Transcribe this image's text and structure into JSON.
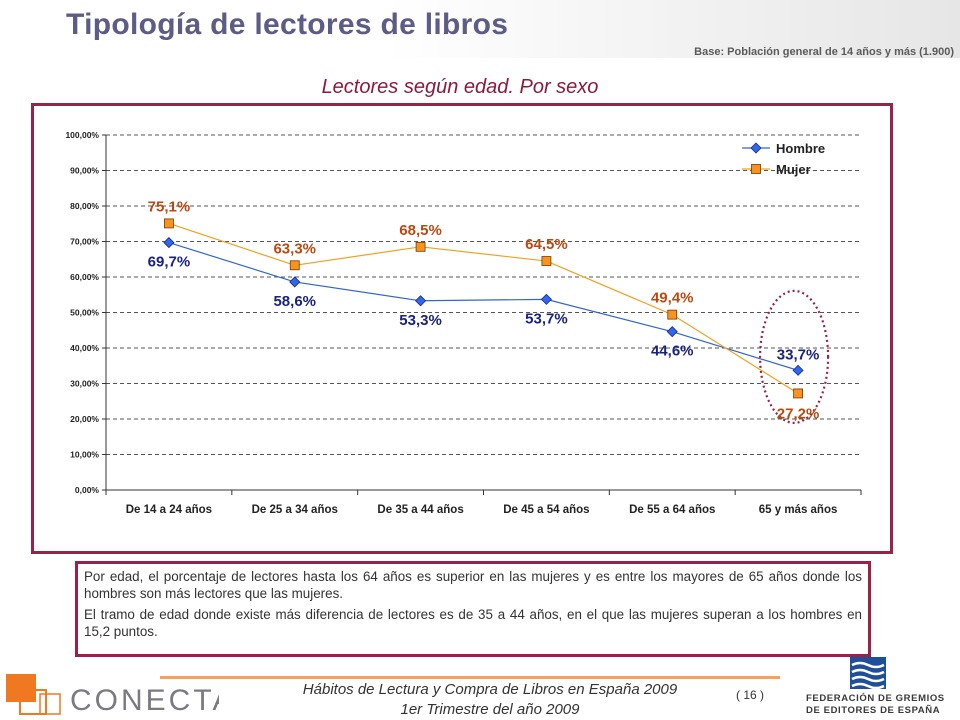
{
  "page": {
    "title": "Tipología de lectores de libros",
    "base_note": "Base: Población general de 14 años y más (1.900)",
    "subtitle": "Lectores según edad. Por sexo"
  },
  "chart_data": {
    "type": "line",
    "categories": [
      "De 14 a 24 años",
      "De 25 a 34 años",
      "De 35 a 44 años",
      "De 45 a 54 años",
      "De 55 a 64 años",
      "65 y más años"
    ],
    "series": [
      {
        "name": "Hombre",
        "values": [
          69.7,
          58.6,
          53.3,
          53.7,
          44.6,
          33.7
        ],
        "labels": [
          "69,7%",
          "58,6%",
          "53,3%",
          "53,7%",
          "44,6%",
          "33,7%"
        ],
        "color": "#3366cc",
        "marker": "diamond"
      },
      {
        "name": "Mujer",
        "values": [
          75.1,
          63.3,
          68.5,
          64.5,
          49.4,
          27.2
        ],
        "labels": [
          "75,1%",
          "63,3%",
          "68,5%",
          "64,5%",
          "49,4%",
          "27,2%"
        ],
        "color": "#f0a020",
        "marker": "square"
      }
    ],
    "y_ticks": [
      "0,00%",
      "10,00%",
      "20,00%",
      "30,00%",
      "40,00%",
      "50,00%",
      "60,00%",
      "70,00%",
      "80,00%",
      "90,00%",
      "100,00%"
    ],
    "ylim": [
      0,
      100
    ],
    "grid": true,
    "legend": "top-right",
    "highlight": "65 y más años",
    "label_colors": {
      "Hombre": "#1a237e",
      "Mujer": "#b84a12"
    }
  },
  "text_box": {
    "paragraph1": "Por edad, el porcentaje de lectores hasta los 64 años es superior en las mujeres y es entre los mayores de 65 años donde los hombres son más lectores que las mujeres.",
    "paragraph2": "El tramo de edad donde existe más diferencia de lectores es de 35 a 44 años, en el que las mujeres superan a los hombres en 15,2 puntos."
  },
  "footer": {
    "line1": "Hábitos de Lectura y Compra de Libros en España 2009",
    "line2": "1er Trimestre del año 2009",
    "page_number": "( 16 )",
    "left_logo": "CONECTA",
    "right_logo_line1": "FEDERACIÓN DE GREMIOS",
    "right_logo_line2": "DE EDITORES DE ESPAÑA"
  }
}
